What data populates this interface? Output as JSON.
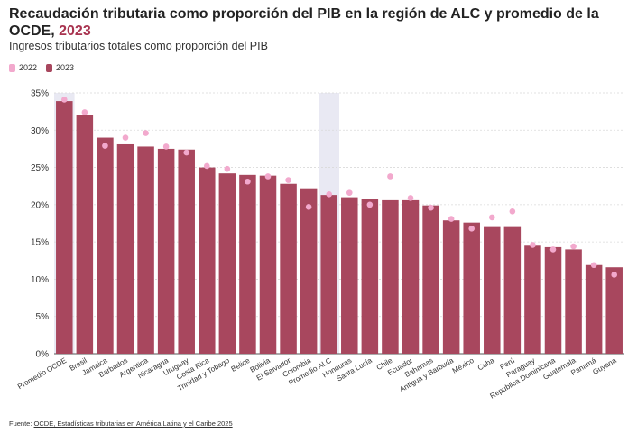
{
  "header": {
    "title_main": "Recaudación tributaria como proporción del PIB en la región de ALC y promedio de la OCDE, ",
    "title_year": "2023",
    "subtitle": "Ingresos tributarios totales como proporción del PIB"
  },
  "footer": {
    "source_label": "Fuente: ",
    "source_link": "OCDE, Estadísticas tributarias en América Latina y el Caribe 2025"
  },
  "colors": {
    "bar_2023": "#a8475e",
    "dot_2022": "#f2a9cd",
    "highlight_band": "#e9e9f3"
  },
  "chart_data": {
    "type": "bar",
    "ylim": [
      0,
      35
    ],
    "yticks": [
      "0%",
      "5%",
      "10%",
      "15%",
      "20%",
      "25%",
      "30%",
      "35%"
    ],
    "grid": true,
    "legend_position": "top-left",
    "highlighted": [
      "Promedio OCDE",
      "Promedio ALC"
    ],
    "categories": [
      "Promedio OCDE",
      "Brasil",
      "Jamaica",
      "Barbados",
      "Argentina",
      "Nicaragua",
      "Uruguay",
      "Costa Rica",
      "Trinidad y Tobago",
      "Belice",
      "Bolivia",
      "El Salvador",
      "Colombia",
      "Promedio ALC",
      "Honduras",
      "Santa Lucía",
      "Chile",
      "Ecuador",
      "Bahamas",
      "Antigua y Barbuda",
      "México",
      "Cuba",
      "Perú",
      "Paraguay",
      "República Dominicana",
      "Guatemala",
      "Panamá",
      "Guyana"
    ],
    "series": [
      {
        "name": "2022",
        "mark": "dot",
        "values": [
          34.1,
          32.4,
          27.9,
          29.0,
          29.6,
          27.8,
          27.0,
          25.2,
          24.8,
          23.1,
          23.8,
          23.3,
          19.7,
          21.4,
          21.6,
          20.0,
          23.8,
          20.9,
          19.6,
          18.1,
          16.8,
          18.3,
          19.1,
          14.6,
          14.0,
          14.4,
          11.9,
          10.6
        ]
      },
      {
        "name": "2023",
        "mark": "bar",
        "values": [
          33.9,
          32.0,
          29.0,
          28.1,
          27.8,
          27.5,
          27.4,
          25.0,
          24.2,
          24.0,
          23.9,
          22.8,
          22.2,
          21.3,
          21.0,
          20.8,
          20.6,
          20.6,
          19.9,
          17.9,
          17.6,
          17.0,
          17.0,
          14.5,
          14.3,
          14.0,
          11.9,
          11.6
        ]
      }
    ]
  }
}
